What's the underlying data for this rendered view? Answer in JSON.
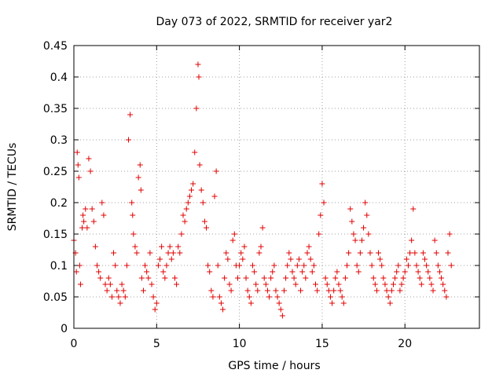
{
  "chart_data": {
    "type": "scatter",
    "title": "Day 073 of 2022, SRMTID for receiver yar2",
    "xlabel": "GPS time / hours",
    "ylabel": "SRMTID / TECUs",
    "xlim": [
      0,
      24.5
    ],
    "ylim": [
      0,
      0.45
    ],
    "x_ticks": [
      0,
      5,
      10,
      15,
      20
    ],
    "x_tick_labels": [
      "0",
      "5",
      "10",
      "15",
      "20"
    ],
    "y_ticks": [
      0,
      0.05,
      0.1,
      0.15,
      0.2,
      0.25,
      0.3,
      0.35,
      0.4,
      0.45
    ],
    "y_tick_labels": [
      "0",
      "0.05",
      "0.1",
      "0.15",
      "0.2",
      "0.25",
      "0.3",
      "0.35",
      "0.4",
      "0.45"
    ],
    "grid": true,
    "marker": "+",
    "color": "#e00000",
    "series": [
      {
        "name": "SRMTID",
        "x": [
          0.0,
          0.1,
          0.15,
          0.2,
          0.25,
          0.3,
          0.35,
          0.4,
          0.5,
          0.55,
          0.6,
          0.7,
          0.8,
          0.9,
          1.0,
          1.1,
          1.2,
          1.3,
          1.4,
          1.5,
          1.6,
          1.7,
          1.8,
          1.9,
          2.0,
          2.1,
          2.2,
          2.3,
          2.4,
          2.5,
          2.6,
          2.7,
          2.8,
          2.9,
          3.0,
          3.1,
          3.2,
          3.3,
          3.4,
          3.5,
          3.55,
          3.6,
          3.7,
          3.8,
          3.9,
          4.0,
          4.05,
          4.1,
          4.2,
          4.3,
          4.4,
          4.5,
          4.6,
          4.7,
          4.8,
          4.9,
          5.0,
          5.1,
          5.2,
          5.3,
          5.4,
          5.5,
          5.6,
          5.7,
          5.8,
          5.9,
          6.0,
          6.1,
          6.2,
          6.3,
          6.4,
          6.5,
          6.6,
          6.7,
          6.8,
          6.9,
          7.0,
          7.1,
          7.2,
          7.3,
          7.4,
          7.5,
          7.55,
          7.6,
          7.7,
          7.8,
          7.9,
          8.0,
          8.1,
          8.2,
          8.3,
          8.4,
          8.5,
          8.6,
          8.7,
          8.8,
          8.9,
          9.0,
          9.1,
          9.2,
          9.3,
          9.4,
          9.5,
          9.6,
          9.7,
          9.8,
          9.9,
          10.0,
          10.1,
          10.2,
          10.3,
          10.4,
          10.5,
          10.6,
          10.7,
          10.8,
          10.9,
          11.0,
          11.1,
          11.2,
          11.3,
          11.4,
          11.5,
          11.6,
          11.7,
          11.8,
          11.9,
          12.0,
          12.1,
          12.2,
          12.3,
          12.4,
          12.5,
          12.6,
          12.7,
          12.8,
          12.9,
          13.0,
          13.1,
          13.2,
          13.3,
          13.4,
          13.5,
          13.6,
          13.7,
          13.8,
          13.9,
          14.0,
          14.1,
          14.2,
          14.3,
          14.4,
          14.5,
          14.6,
          14.7,
          14.8,
          14.9,
          15.0,
          15.1,
          15.2,
          15.3,
          15.4,
          15.5,
          15.6,
          15.7,
          15.8,
          15.9,
          16.0,
          16.1,
          16.2,
          16.3,
          16.4,
          16.5,
          16.6,
          16.7,
          16.8,
          16.9,
          17.0,
          17.1,
          17.2,
          17.3,
          17.4,
          17.5,
          17.6,
          17.7,
          17.8,
          17.9,
          18.0,
          18.1,
          18.2,
          18.3,
          18.4,
          18.5,
          18.6,
          18.7,
          18.8,
          18.9,
          19.0,
          19.1,
          19.2,
          19.3,
          19.4,
          19.5,
          19.6,
          19.7,
          19.8,
          19.9,
          20.0,
          20.1,
          20.2,
          20.3,
          20.4,
          20.5,
          20.6,
          20.7,
          20.8,
          20.9,
          21.0,
          21.1,
          21.2,
          21.3,
          21.4,
          21.5,
          21.6,
          21.7,
          21.8,
          21.9,
          22.0,
          22.1,
          22.2,
          22.3,
          22.4,
          22.5,
          22.6,
          22.7,
          22.8
        ],
        "y": [
          0.14,
          0.12,
          0.09,
          0.28,
          0.26,
          0.24,
          0.1,
          0.07,
          0.16,
          0.18,
          0.17,
          0.19,
          0.16,
          0.27,
          0.25,
          0.19,
          0.17,
          0.13,
          0.1,
          0.09,
          0.08,
          0.2,
          0.18,
          0.07,
          0.06,
          0.08,
          0.07,
          0.05,
          0.12,
          0.1,
          0.06,
          0.05,
          0.04,
          0.07,
          0.06,
          0.05,
          0.1,
          0.3,
          0.34,
          0.2,
          0.18,
          0.15,
          0.13,
          0.12,
          0.24,
          0.26,
          0.22,
          0.08,
          0.06,
          0.1,
          0.09,
          0.08,
          0.12,
          0.07,
          0.05,
          0.03,
          0.04,
          0.1,
          0.11,
          0.13,
          0.09,
          0.08,
          0.1,
          0.12,
          0.13,
          0.11,
          0.12,
          0.08,
          0.07,
          0.13,
          0.12,
          0.15,
          0.18,
          0.17,
          0.19,
          0.2,
          0.21,
          0.22,
          0.23,
          0.28,
          0.35,
          0.42,
          0.4,
          0.26,
          0.22,
          0.2,
          0.17,
          0.16,
          0.1,
          0.09,
          0.06,
          0.05,
          0.21,
          0.25,
          0.1,
          0.05,
          0.04,
          0.03,
          0.08,
          0.12,
          0.11,
          0.07,
          0.06,
          0.14,
          0.15,
          0.1,
          0.08,
          0.1,
          0.12,
          0.11,
          0.13,
          0.08,
          0.06,
          0.05,
          0.04,
          0.1,
          0.09,
          0.07,
          0.06,
          0.12,
          0.13,
          0.16,
          0.08,
          0.07,
          0.06,
          0.05,
          0.08,
          0.09,
          0.1,
          0.06,
          0.05,
          0.04,
          0.03,
          0.02,
          0.06,
          0.08,
          0.1,
          0.12,
          0.11,
          0.09,
          0.08,
          0.07,
          0.1,
          0.11,
          0.06,
          0.09,
          0.1,
          0.08,
          0.12,
          0.13,
          0.11,
          0.09,
          0.1,
          0.07,
          0.06,
          0.15,
          0.18,
          0.23,
          0.2,
          0.08,
          0.07,
          0.06,
          0.05,
          0.04,
          0.06,
          0.08,
          0.09,
          0.07,
          0.06,
          0.05,
          0.04,
          0.08,
          0.1,
          0.12,
          0.19,
          0.17,
          0.15,
          0.14,
          0.1,
          0.09,
          0.12,
          0.14,
          0.16,
          0.2,
          0.18,
          0.15,
          0.12,
          0.1,
          0.08,
          0.07,
          0.06,
          0.12,
          0.11,
          0.1,
          0.08,
          0.07,
          0.06,
          0.05,
          0.04,
          0.06,
          0.07,
          0.08,
          0.09,
          0.1,
          0.06,
          0.07,
          0.08,
          0.09,
          0.11,
          0.1,
          0.12,
          0.14,
          0.19,
          0.12,
          0.1,
          0.09,
          0.08,
          0.07,
          0.12,
          0.11,
          0.1,
          0.09,
          0.08,
          0.07,
          0.06,
          0.14,
          0.12,
          0.1,
          0.09,
          0.08,
          0.07,
          0.06,
          0.05,
          0.12,
          0.15,
          0.1
        ]
      }
    ]
  }
}
